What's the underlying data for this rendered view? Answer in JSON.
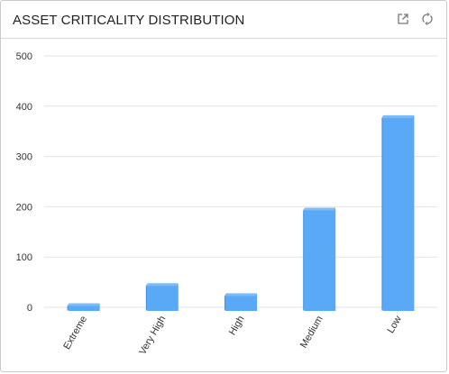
{
  "widget": {
    "title": "ASSET CRITICALITY DISTRIBUTION",
    "icons": [
      "popout-icon",
      "refresh-icon"
    ]
  },
  "colors": {
    "bar_front": "#5aa9f7",
    "bar_top": "#7dbcf9",
    "bar_side": "#3f8fe0",
    "grid": "#e2e2e2",
    "tick_text": "#333333",
    "icon": "#777777"
  },
  "chart_data": {
    "type": "bar",
    "categories": [
      "Extreme",
      "Very High",
      "High",
      "Medium",
      "Low"
    ],
    "values": [
      8,
      48,
      28,
      198,
      382
    ],
    "ylim": [
      0,
      500
    ],
    "yticks": [
      0,
      100,
      200,
      300,
      400,
      500
    ],
    "grid": true,
    "legend": "none",
    "xlabel": "",
    "ylabel": ""
  }
}
